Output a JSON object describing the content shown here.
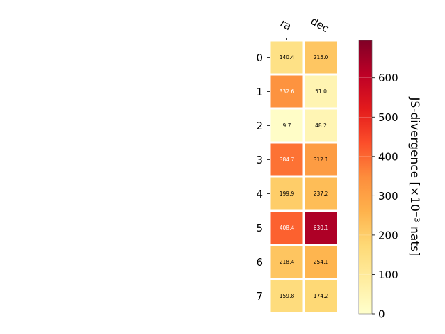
{
  "chart_data": {
    "type": "heatmap",
    "columns": [
      "ra",
      "dec"
    ],
    "rows": [
      "0",
      "1",
      "2",
      "3",
      "4",
      "5",
      "6",
      "7"
    ],
    "values": [
      [
        140.4,
        215.0
      ],
      [
        332.6,
        51.0
      ],
      [
        9.7,
        48.2
      ],
      [
        384.7,
        312.1
      ],
      [
        199.9,
        237.2
      ],
      [
        408.4,
        630.1
      ],
      [
        218.4,
        254.1
      ],
      [
        159.8,
        174.2
      ]
    ],
    "value_labels": [
      [
        "140.4",
        "215.0"
      ],
      [
        "332.6",
        "51.0"
      ],
      [
        "9.7",
        "48.2"
      ],
      [
        "384.7",
        "312.1"
      ],
      [
        "199.9",
        "237.2"
      ],
      [
        "408.4",
        "630.1"
      ],
      [
        "218.4",
        "254.1"
      ],
      [
        "159.8",
        "174.2"
      ]
    ],
    "colorbar": {
      "label": "JS-divergence [×10⁻³ nats]",
      "min": 0,
      "max": 695,
      "ticks": [
        0,
        100,
        200,
        300,
        400,
        500,
        600
      ],
      "colormap": "YlOrRd"
    }
  }
}
